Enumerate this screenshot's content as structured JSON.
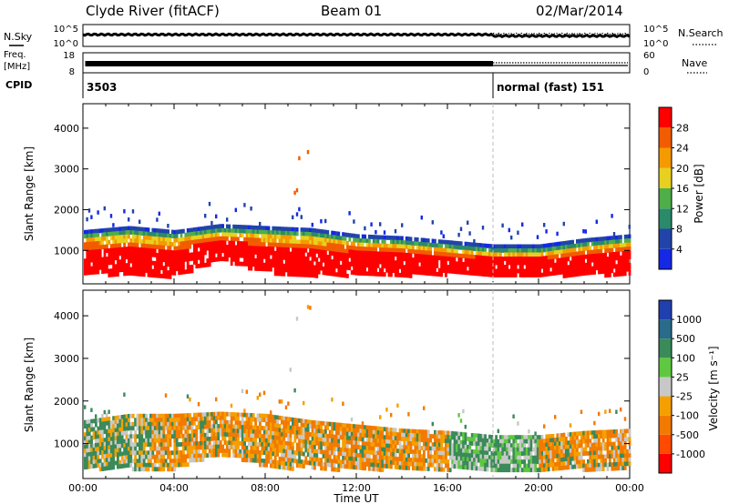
{
  "header": {
    "station": "Clyde River (fitACF)",
    "beam": "Beam 01",
    "date": "02/Mar/2014"
  },
  "panel_labels": {
    "nsky": "N.Sky",
    "nsearch": "N.Search",
    "freq_line1": "Freq.",
    "freq_line2": "[MHz]",
    "nave": "Nave",
    "cpid": "CPID"
  },
  "noise_axis": {
    "left_top": "10^5",
    "left_bottom": "10^0",
    "right_top": "10^5",
    "right_bottom": "10^0"
  },
  "freq_axis": {
    "left_top": "18",
    "left_bottom": "8",
    "right_top": "60",
    "right_bottom": "0"
  },
  "cpid_segments": [
    {
      "label": "3503",
      "start_hour": 0
    },
    {
      "label": "normal (fast) 151",
      "start_hour": 18
    }
  ],
  "colors": {
    "power_scale": [
      "#1428e6",
      "#2244aa",
      "#2a8a6a",
      "#4fae4a",
      "#e8d020",
      "#f59a00",
      "#f25c00",
      "#ff0000"
    ],
    "velocity_scale": [
      "#ff0000",
      "#ff4a00",
      "#f27a00",
      "#f5a000",
      "#c8c8c8",
      "#5fc840",
      "#3a8a5a",
      "#2a6a8a",
      "#2040b0"
    ]
  },
  "chart_data": [
    {
      "type": "heatmap",
      "name": "power",
      "xlabel": "",
      "ylabel": "Slant Range [km]",
      "x_range_hours": [
        0,
        24
      ],
      "ylim": [
        180,
        4600
      ],
      "yticks": [
        1000,
        2000,
        3000,
        4000
      ],
      "ytick_labels": [
        "1000",
        "2000",
        "3000",
        "4000"
      ],
      "colorbar_label": "Power [dB]",
      "colorbar_range": [
        0,
        32
      ],
      "colorbar_ticks": [
        4,
        8,
        12,
        16,
        20,
        24,
        28
      ],
      "colorbar_tick_labels": [
        "4",
        "8",
        "12",
        "16",
        "20",
        "24",
        "28"
      ],
      "scatter_band_km": [
        {
          "hour": 0.0,
          "bottom": 480,
          "top": 1500
        },
        {
          "hour": 2.0,
          "bottom": 420,
          "top": 1600
        },
        {
          "hour": 4.0,
          "bottom": 400,
          "top": 1500
        },
        {
          "hour": 6.0,
          "bottom": 800,
          "top": 1650
        },
        {
          "hour": 8.0,
          "bottom": 500,
          "top": 1600
        },
        {
          "hour": 10.0,
          "bottom": 420,
          "top": 1550
        },
        {
          "hour": 12.0,
          "bottom": 430,
          "top": 1400
        },
        {
          "hour": 14.0,
          "bottom": 420,
          "top": 1350
        },
        {
          "hour": 16.0,
          "bottom": 450,
          "top": 1250
        },
        {
          "hour": 18.0,
          "bottom": 430,
          "top": 1150
        },
        {
          "hour": 20.0,
          "bottom": 420,
          "top": 1150
        },
        {
          "hour": 22.0,
          "bottom": 430,
          "top": 1300
        },
        {
          "hour": 24.0,
          "bottom": 450,
          "top": 1400
        }
      ]
    },
    {
      "type": "heatmap",
      "name": "velocity",
      "xlabel": "Time UT",
      "ylabel": "Slant Range [km]",
      "x_range_hours": [
        0,
        24
      ],
      "xticks_hours": [
        0,
        4,
        8,
        12,
        16,
        20,
        24
      ],
      "xtick_labels": [
        "00:00",
        "04:00",
        "08:00",
        "12:00",
        "16:00",
        "20:00",
        "00:00"
      ],
      "ylim": [
        180,
        4600
      ],
      "yticks": [
        1000,
        2000,
        3000,
        4000
      ],
      "ytick_labels": [
        "1000",
        "2000",
        "3000",
        "4000"
      ],
      "colorbar_label": "Velocity [m s⁻¹]",
      "colorbar_tick_labels": [
        "-1000",
        "-500",
        "-100",
        "-25",
        "25",
        "100",
        "500",
        "1000"
      ],
      "scatter_band_km": [
        {
          "hour": 0.0,
          "bottom": 450,
          "top": 1550
        },
        {
          "hour": 2.0,
          "bottom": 450,
          "top": 1700
        },
        {
          "hour": 4.0,
          "bottom": 450,
          "top": 1700
        },
        {
          "hour": 6.0,
          "bottom": 800,
          "top": 1750
        },
        {
          "hour": 8.0,
          "bottom": 500,
          "top": 1700
        },
        {
          "hour": 10.0,
          "bottom": 430,
          "top": 1550
        },
        {
          "hour": 12.0,
          "bottom": 430,
          "top": 1450
        },
        {
          "hour": 14.0,
          "bottom": 430,
          "top": 1350
        },
        {
          "hour": 16.0,
          "bottom": 430,
          "top": 1300
        },
        {
          "hour": 18.0,
          "bottom": 430,
          "top": 1200
        },
        {
          "hour": 20.0,
          "bottom": 430,
          "top": 1200
        },
        {
          "hour": 22.0,
          "bottom": 430,
          "top": 1300
        },
        {
          "hour": 24.0,
          "bottom": 430,
          "top": 1350
        }
      ]
    }
  ]
}
